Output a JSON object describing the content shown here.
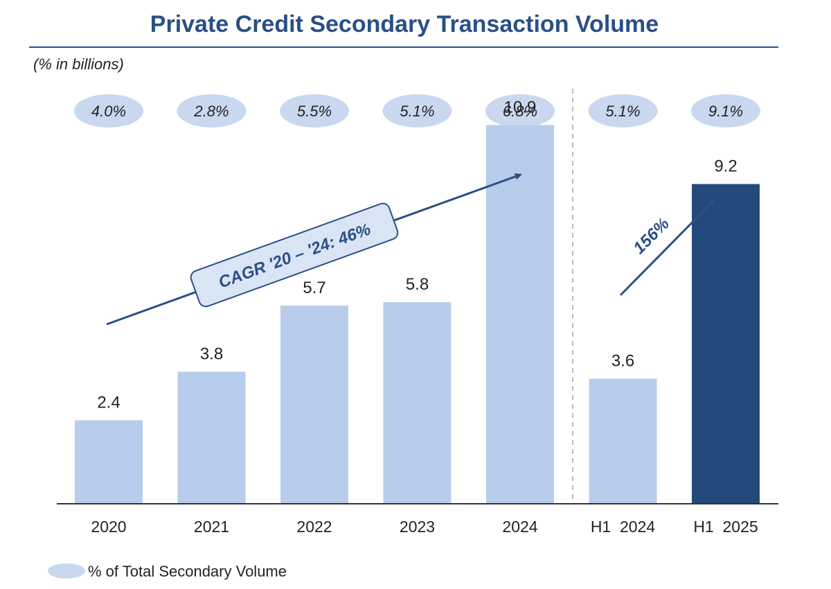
{
  "colors": {
    "title": "#2b4f86",
    "bar_light": "#b8cdeb",
    "bar_dark": "#244a7c",
    "ellipse": "#c9d8ef",
    "arrow": "#2b4f86",
    "annotation_box": "#d9e4f4",
    "divider": "#bbbbbb"
  },
  "chart_data": {
    "type": "bar",
    "title": "Private Credit Secondary Transaction Volume",
    "subtitle": "(% in billions)",
    "categories": [
      "2020",
      "2021",
      "2022",
      "2023",
      "2024",
      "H1  2024",
      "H1  2025"
    ],
    "values": [
      2.4,
      3.8,
      5.7,
      5.8,
      10.9,
      3.6,
      9.2
    ],
    "value_labels": [
      "2.4",
      "3.8",
      "5.7",
      "5.8",
      "10.9",
      "3.6",
      "9.2"
    ],
    "pct_of_total": [
      "4.0%",
      "2.8%",
      "5.5%",
      "5.1%",
      "6.8%",
      "5.1%",
      "9.1%"
    ],
    "highlight_index": 6,
    "ylim": [
      0,
      13.3
    ],
    "legend": [
      "% of Total Secondary Volume"
    ],
    "legend_position": "bottom-left",
    "annotations": {
      "cagr": "CAGR '20 – '24: 46%",
      "growth": "156%"
    }
  }
}
